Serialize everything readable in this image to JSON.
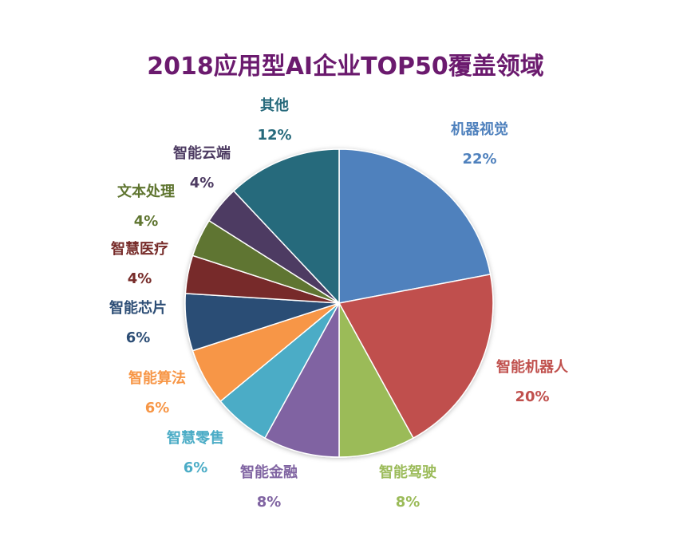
{
  "chart_data": {
    "type": "pie",
    "title": "2018应用型AI企业TOP50覆盖领域",
    "slices": [
      {
        "name": "机器视觉",
        "value": 22,
        "label": "22%",
        "color": "#4f81bd"
      },
      {
        "name": "智能机器人",
        "value": 20,
        "label": "20%",
        "color": "#c0504d"
      },
      {
        "name": "智能驾驶",
        "value": 8,
        "label": "8%",
        "color": "#9bbb59"
      },
      {
        "name": "智能金融",
        "value": 8,
        "label": "8%",
        "color": "#8064a2"
      },
      {
        "name": "智慧零售",
        "value": 6,
        "label": "6%",
        "color": "#4bacc6"
      },
      {
        "name": "智能算法",
        "value": 6,
        "label": "6%",
        "color": "#f79646"
      },
      {
        "name": "智能芯片",
        "value": 6,
        "label": "6%",
        "color": "#2c4d75"
      },
      {
        "name": "智慧医疗",
        "value": 4,
        "label": "4%",
        "color": "#772c2a"
      },
      {
        "name": "文本处理",
        "value": 4,
        "label": "4%",
        "color": "#5f7530"
      },
      {
        "name": "智能云端",
        "value": 4,
        "label": "4%",
        "color": "#4d3b62"
      },
      {
        "name": "其他",
        "value": 12,
        "label": "12%",
        "color": "#276a7c"
      }
    ]
  }
}
